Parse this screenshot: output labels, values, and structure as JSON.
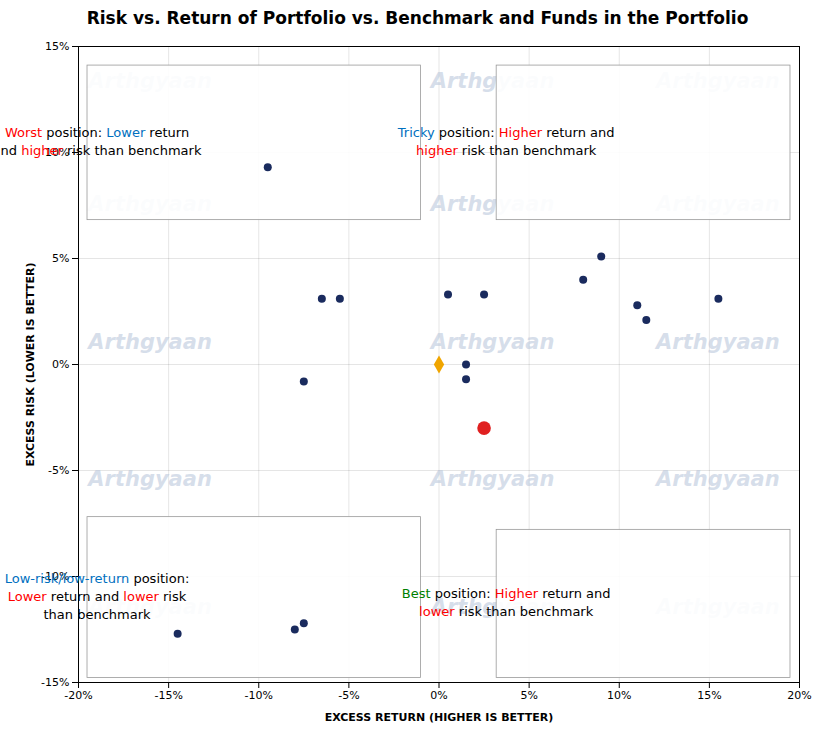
{
  "chart_data": {
    "type": "scatter",
    "title": "Risk vs. Return of Portfolio vs. Benchmark and Funds in the Portfolio",
    "xlabel": "EXCESS RETURN (HIGHER IS BETTER)",
    "ylabel": "EXCESS RISK (LOWER IS BETTER)",
    "xlim": [
      -0.2,
      0.2
    ],
    "ylim": [
      -0.15,
      0.15
    ],
    "xticks": [
      {
        "value": -0.2,
        "label": "-20%"
      },
      {
        "value": -0.15,
        "label": "-15%"
      },
      {
        "value": -0.1,
        "label": "-10%"
      },
      {
        "value": -0.05,
        "label": "-5%"
      },
      {
        "value": 0.0,
        "label": "0%"
      },
      {
        "value": 0.05,
        "label": "5%"
      },
      {
        "value": 0.1,
        "label": "10%"
      },
      {
        "value": 0.15,
        "label": "15%"
      },
      {
        "value": 0.2,
        "label": "20%"
      }
    ],
    "yticks": [
      {
        "value": -0.15,
        "label": "-15%"
      },
      {
        "value": -0.1,
        "label": "-10%"
      },
      {
        "value": -0.05,
        "label": "-5%"
      },
      {
        "value": 0.0,
        "label": "0%"
      },
      {
        "value": 0.05,
        "label": "5%"
      },
      {
        "value": 0.1,
        "label": "10%"
      },
      {
        "value": 0.15,
        "label": "15%"
      }
    ],
    "grid": true,
    "watermark": "Arthgyaan",
    "series": [
      {
        "color": "#1a2b5e",
        "marker": "circle",
        "x": [
          -0.065,
          -0.055,
          -0.145,
          -0.08,
          -0.075,
          -0.095,
          -0.075,
          0.005,
          0.025,
          0.015,
          0.08,
          0.09,
          0.11,
          0.115,
          0.155,
          0.015
        ],
        "values": [
          0.031,
          0.031,
          -0.127,
          -0.125,
          -0.122,
          0.093,
          -0.008,
          0.033,
          0.033,
          -0.007,
          0.04,
          0.051,
          0.028,
          0.021,
          0.031,
          0.0
        ]
      },
      {
        "color": "#f0a500",
        "marker": "diamond",
        "x": [
          0.0
        ],
        "values": [
          0.0
        ]
      },
      {
        "color": "#e02020",
        "marker": "circle",
        "x": [
          0.025
        ],
        "values": [
          -0.03
        ]
      }
    ],
    "annotations": [
      {
        "lines": [
          [
            {
              "text": "Worst",
              "color": "red"
            },
            {
              "text": " position: ",
              "color": "black"
            },
            {
              "text": "Lower",
              "color": "#0070c0"
            },
            {
              "text": " return",
              "color": "black"
            }
          ],
          [
            {
              "text": "and ",
              "color": "black"
            },
            {
              "text": "higher",
              "color": "red"
            },
            {
              "text": " risk than benchmark",
              "color": "black"
            }
          ]
        ]
      },
      {
        "lines": [
          [
            {
              "text": "Tricky",
              "color": "#0070c0"
            },
            {
              "text": " position: ",
              "color": "black"
            },
            {
              "text": "Higher",
              "color": "red"
            },
            {
              "text": " return and",
              "color": "black"
            }
          ],
          [
            {
              "text": "higher",
              "color": "red"
            },
            {
              "text": " risk than benchmark",
              "color": "black"
            }
          ]
        ]
      },
      {
        "lines": [
          [
            {
              "text": "Low-risk/low-return",
              "color": "#0070c0"
            },
            {
              "text": " position:",
              "color": "black"
            }
          ],
          [
            {
              "text": "Lower",
              "color": "red"
            },
            {
              "text": " return and ",
              "color": "black"
            },
            {
              "text": "lower",
              "color": "red"
            },
            {
              "text": " risk",
              "color": "black"
            }
          ],
          [
            {
              "text": "than benchmark",
              "color": "black"
            }
          ]
        ]
      },
      {
        "lines": [
          [
            {
              "text": "Best",
              "color": "green"
            },
            {
              "text": " position: ",
              "color": "black"
            },
            {
              "text": "Higher",
              "color": "red"
            },
            {
              "text": " return and",
              "color": "black"
            }
          ],
          [
            {
              "text": "lower",
              "color": "red"
            },
            {
              "text": " risk than benchmark",
              "color": "black"
            }
          ]
        ]
      }
    ]
  }
}
